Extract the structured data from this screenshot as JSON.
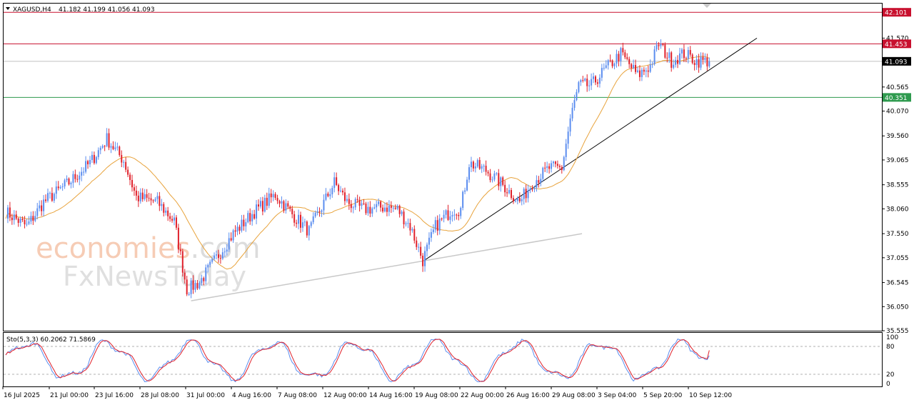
{
  "header": {
    "symbol": "XAGUSD,H4",
    "ohlc": "41.182 41.199 41.056 41.093"
  },
  "watermark": {
    "brand_main": "economies",
    "brand_suffix": ".com",
    "brand_sub": "FxNewsToday"
  },
  "chart_data": {
    "type": "candlestick",
    "ylim": [
      35.555,
      42.28
    ],
    "y_ticks": [
      "41.570",
      "40.565",
      "40.070",
      "39.560",
      "39.065",
      "38.555",
      "38.060",
      "37.550",
      "37.055",
      "36.545",
      "36.050",
      "35.555"
    ],
    "x_labels": [
      "16 Jul 2025",
      "21 Jul 00:00",
      "23 Jul 16:00",
      "28 Jul 08:00",
      "31 Jul 00:00",
      "4 Aug 16:00",
      "7 Aug 08:00",
      "12 Aug 00:00",
      "14 Aug 16:00",
      "19 Aug 08:00",
      "22 Aug 00:00",
      "26 Aug 16:00",
      "29 Aug 08:00",
      "3 Sep 04:00",
      "5 Sep 20:00",
      "10 Sep 12:00"
    ],
    "levels": [
      {
        "value": 42.101,
        "label": "42.101",
        "color": "#c8102e"
      },
      {
        "value": 41.453,
        "label": "41.453",
        "color": "#c8102e"
      },
      {
        "value": 41.093,
        "label": "41.093",
        "color": "#000000"
      },
      {
        "value": 40.351,
        "label": "40.351",
        "color": "#2e9a4e"
      }
    ],
    "trendlines": [
      {
        "x_from": "19 Aug 08:00",
        "y_from": 36.98,
        "x_to": "10 Sep 12:00 (extended)",
        "y_to": 41.57,
        "color": "#000000"
      },
      {
        "x_from": "31 Jul 00:00",
        "y_from": 36.17,
        "x_to": "22 Aug 00:00 (extended)",
        "y_to": 37.55,
        "color": "#c8c8c8"
      }
    ],
    "moving_average_color": "#e8a33c",
    "bull_color": "#5b8def",
    "bear_color": "#e0212b",
    "path_anchors": [
      [
        0,
        38.0
      ],
      [
        10,
        37.7
      ],
      [
        18,
        38.2
      ],
      [
        30,
        38.6
      ],
      [
        40,
        39.0
      ],
      [
        48,
        39.5
      ],
      [
        56,
        39.05
      ],
      [
        62,
        38.3
      ],
      [
        72,
        38.2
      ],
      [
        80,
        37.8
      ],
      [
        86,
        36.4
      ],
      [
        92,
        36.55
      ],
      [
        100,
        37.05
      ],
      [
        108,
        37.55
      ],
      [
        118,
        38.0
      ],
      [
        128,
        38.35
      ],
      [
        136,
        37.95
      ],
      [
        144,
        37.6
      ],
      [
        150,
        38.1
      ],
      [
        156,
        38.6
      ],
      [
        162,
        38.2
      ],
      [
        170,
        38.05
      ],
      [
        180,
        38.1
      ],
      [
        186,
        38.05
      ],
      [
        192,
        37.7
      ],
      [
        198,
        37.0
      ],
      [
        204,
        37.7
      ],
      [
        212,
        38.05
      ],
      [
        216,
        38.05
      ],
      [
        220,
        39.0
      ],
      [
        228,
        38.85
      ],
      [
        236,
        38.55
      ],
      [
        244,
        38.2
      ],
      [
        250,
        38.6
      ],
      [
        258,
        38.9
      ],
      [
        264,
        38.9
      ],
      [
        268,
        39.9
      ],
      [
        272,
        40.6
      ],
      [
        278,
        40.6
      ],
      [
        284,
        40.9
      ],
      [
        292,
        41.25
      ],
      [
        300,
        40.8
      ],
      [
        306,
        41.0
      ],
      [
        310,
        41.45
      ],
      [
        316,
        41.1
      ],
      [
        322,
        41.25
      ],
      [
        328,
        41.1
      ],
      [
        334,
        41.093
      ]
    ],
    "stochastic": {
      "label": "Sto(5,3,3) 60.2062 71.5869",
      "main": 60.2062,
      "signal": 71.5869,
      "ylim": [
        0,
        100
      ],
      "levels": [
        20,
        80
      ],
      "ticks": [
        "100",
        "80",
        "20",
        "0"
      ],
      "main_color": "#5b8def",
      "signal_color": "#e0212b"
    }
  }
}
